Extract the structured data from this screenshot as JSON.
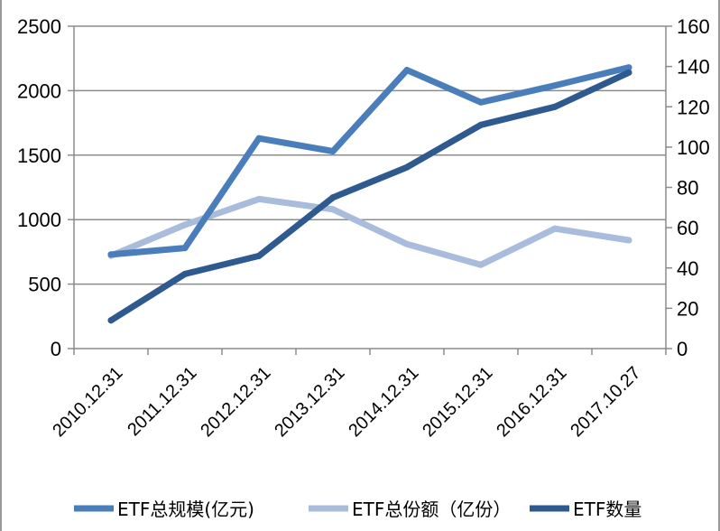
{
  "chart_data": {
    "type": "line",
    "categories": [
      "2010.12.31",
      "2011.12.31",
      "2012.12.31",
      "2013.12.31",
      "2014.12.31",
      "2015.12.31",
      "2016.12.31",
      "2017.10.27"
    ],
    "series": [
      {
        "name": "ETF总规模(亿元)",
        "axis": "left",
        "color": "#4a7ebb",
        "values": [
          730,
          780,
          1630,
          1530,
          2160,
          1910,
          2040,
          2180
        ]
      },
      {
        "name": "ETF总份额（亿份）",
        "axis": "left",
        "color": "#a9bcdb",
        "values": [
          720,
          960,
          1160,
          1080,
          810,
          650,
          930,
          840
        ]
      },
      {
        "name": "ETF数量",
        "axis": "right",
        "color": "#2f5a8f",
        "values": [
          14,
          37,
          46,
          75,
          90,
          111,
          120,
          137
        ]
      }
    ],
    "y_left": {
      "min": 0,
      "max": 2500,
      "ticks": [
        "0",
        "500",
        "1000",
        "1500",
        "2000",
        "2500"
      ]
    },
    "y_right": {
      "min": 0,
      "max": 160,
      "ticks": [
        "0",
        "20",
        "40",
        "60",
        "80",
        "100",
        "120",
        "140",
        "160"
      ]
    },
    "grid": "horizontal",
    "legend_position": "bottom"
  }
}
